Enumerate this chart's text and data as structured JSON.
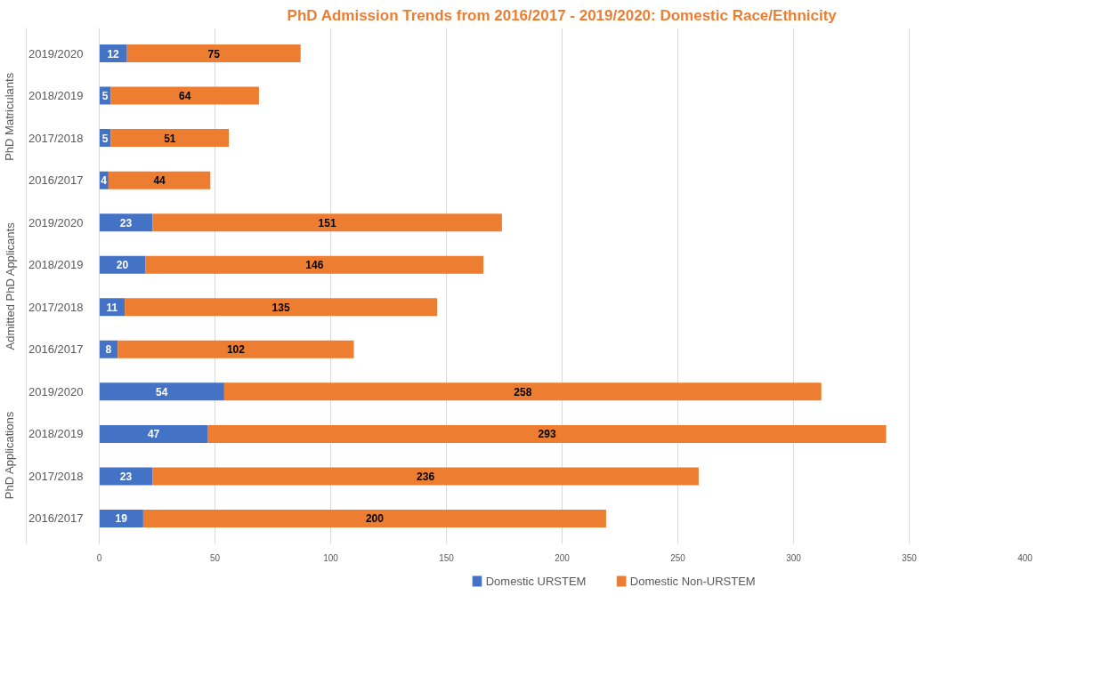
{
  "chart_data": {
    "type": "bar",
    "orientation": "horizontal",
    "stacked": true,
    "title": "PhD Admission Trends from 2016/2017 - 2019/2020: Domestic Race/Ethnicity",
    "categories": [
      "2019/2020",
      "2018/2019",
      "2017/2018",
      "2016/2017",
      "2019/2020",
      "2018/2019",
      "2017/2018",
      "2016/2017",
      "2019/2020",
      "2018/2019",
      "2017/2018",
      "2016/2017"
    ],
    "series": [
      {
        "name": "Domestic URSTEM",
        "color": "#4472c4",
        "values": [
          12,
          5,
          5,
          4,
          23,
          20,
          11,
          8,
          54,
          47,
          23,
          19
        ]
      },
      {
        "name": "Domestic Non-URSTEM",
        "color": "#ed7d31",
        "values": [
          75,
          64,
          51,
          44,
          151,
          146,
          135,
          102,
          258,
          293,
          236,
          200
        ]
      }
    ],
    "annotations": [
      "PhD Matriculants",
      "Admitted PhD Applicants",
      "PhD Applications"
    ],
    "xlim": [
      0,
      400
    ],
    "xticks": [
      0,
      50,
      100,
      150,
      200,
      250,
      300,
      350,
      400
    ],
    "grid": "x",
    "legend": "bottom",
    "data_labels": true
  }
}
